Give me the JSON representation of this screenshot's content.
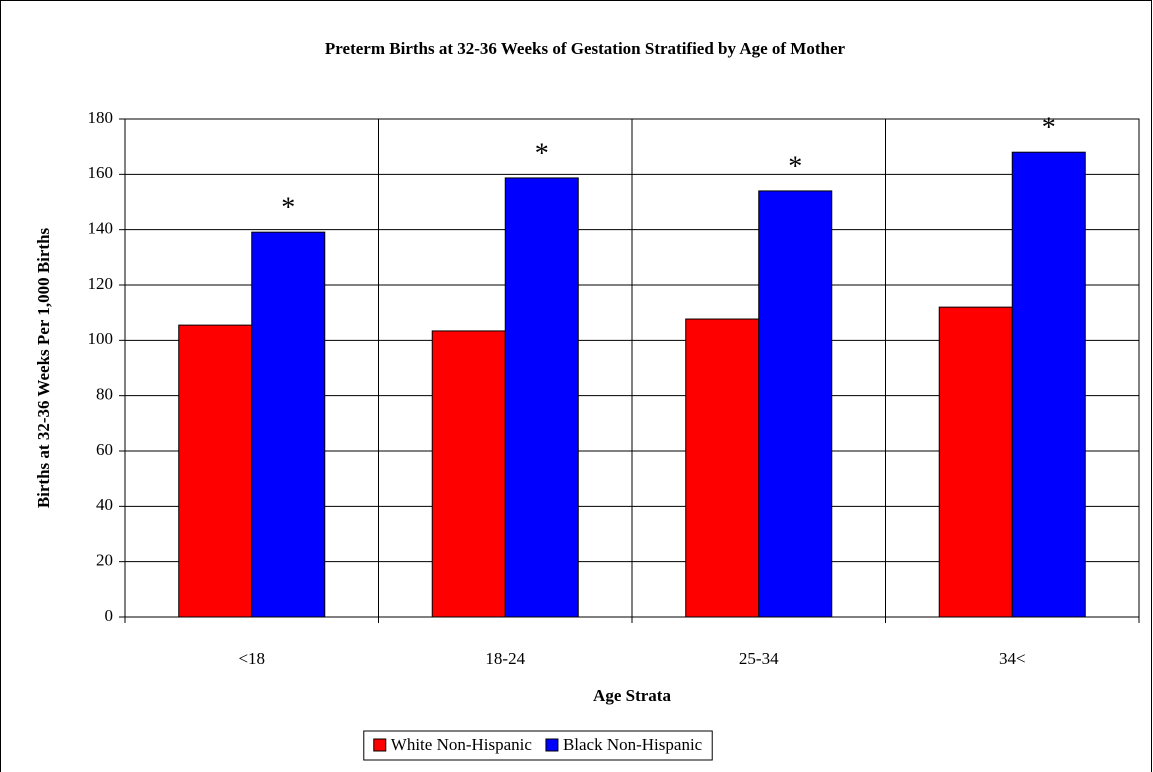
{
  "chart_data": {
    "type": "bar",
    "title": "Preterm Births at 32-36 Weeks of Gestation Stratified by Age of Mother",
    "xlabel": "Age Strata",
    "ylabel": "Births at 32-36 Weeks Per 1,000 Births",
    "categories": [
      "<18",
      "18-24",
      "25-34",
      "34<"
    ],
    "series": [
      {
        "name": "White Non-Hispanic",
        "color": "#ff0000",
        "values": [
          105.5,
          103.4,
          107.7,
          112
        ]
      },
      {
        "name": "Black Non-Hispanic",
        "color": "#0000ff",
        "values": [
          139.1,
          158.7,
          154,
          168
        ]
      }
    ],
    "annotations": [
      "*",
      "*",
      "*",
      "*"
    ],
    "ylim": [
      0,
      180
    ],
    "yticks": [
      0,
      20,
      40,
      60,
      80,
      100,
      120,
      140,
      160,
      180
    ],
    "grid": true,
    "legend": "bottom"
  }
}
